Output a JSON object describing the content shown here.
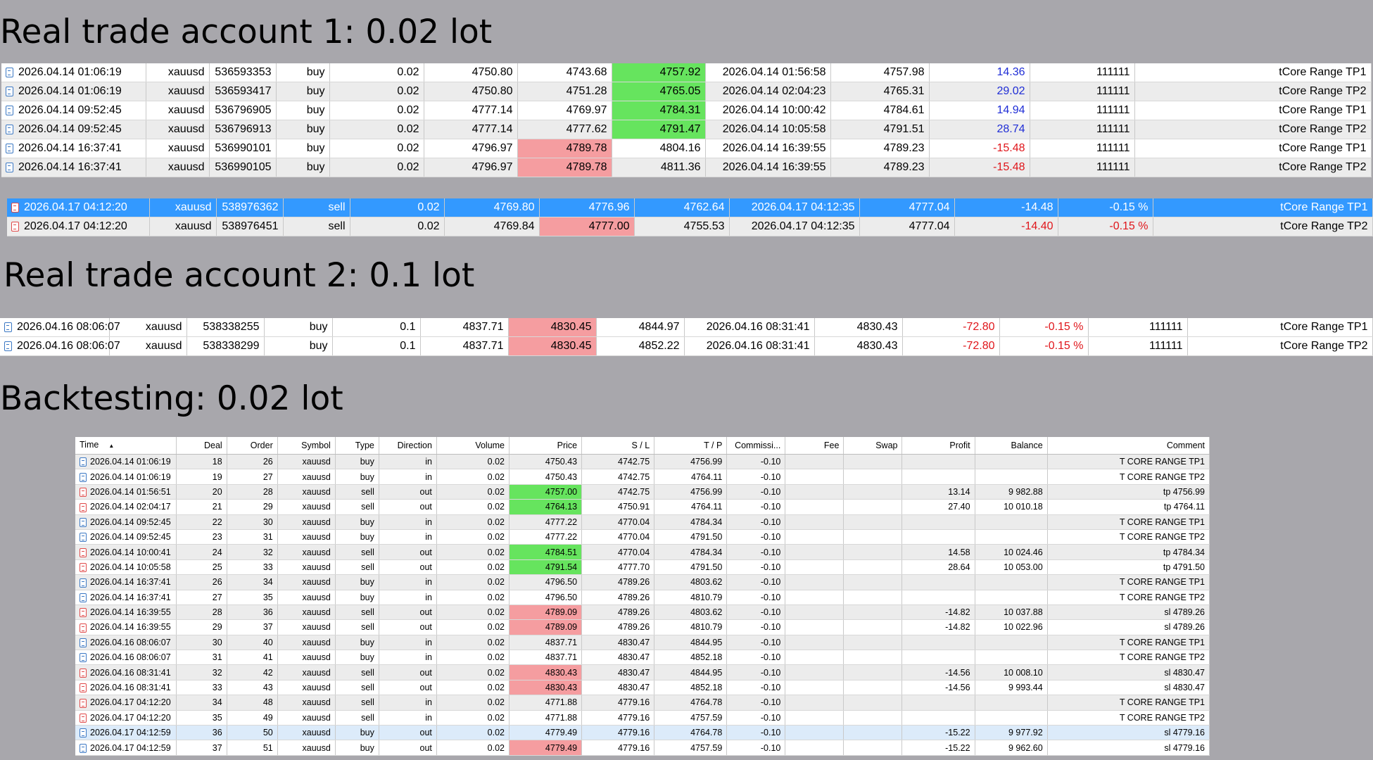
{
  "headings": {
    "account1": "Real trade account 1: 0.02 lot",
    "account2": "Real trade account 2: 0.1 lot",
    "backtest": "Backtesting: 0.02 lot"
  },
  "colors": {
    "background": "#a8a7ac",
    "selected_row": "#3399ff",
    "green_cell": "#66e45e",
    "red_cell": "#f59da0",
    "negative_text": "#e0161b",
    "positive_text": "#1f2dd6"
  },
  "account1": {
    "rows": [
      {
        "time": "2026.04.14 01:06:19",
        "symbol": "xauusd",
        "ticket": "536593353",
        "type": "buy",
        "volume": "0.02",
        "open": "4750.80",
        "sl": "4743.68",
        "tp": "4757.92",
        "close_time": "2026.04.14 01:56:58",
        "close": "4757.98",
        "profit": "14.36",
        "magic": "111111",
        "comment": "tCore Range TP1",
        "hl": "tp",
        "sign": "pos"
      },
      {
        "time": "2026.04.14 01:06:19",
        "symbol": "xauusd",
        "ticket": "536593417",
        "type": "buy",
        "volume": "0.02",
        "open": "4750.80",
        "sl": "4751.28",
        "tp": "4765.05",
        "close_time": "2026.04.14 02:04:23",
        "close": "4765.31",
        "profit": "29.02",
        "magic": "111111",
        "comment": "tCore Range TP2",
        "hl": "tp",
        "sign": "pos"
      },
      {
        "time": "2026.04.14 09:52:45",
        "symbol": "xauusd",
        "ticket": "536796905",
        "type": "buy",
        "volume": "0.02",
        "open": "4777.14",
        "sl": "4769.97",
        "tp": "4784.31",
        "close_time": "2026.04.14 10:00:42",
        "close": "4784.61",
        "profit": "14.94",
        "magic": "111111",
        "comment": "tCore Range TP1",
        "hl": "tp",
        "sign": "pos"
      },
      {
        "time": "2026.04.14 09:52:45",
        "symbol": "xauusd",
        "ticket": "536796913",
        "type": "buy",
        "volume": "0.02",
        "open": "4777.14",
        "sl": "4777.62",
        "tp": "4791.47",
        "close_time": "2026.04.14 10:05:58",
        "close": "4791.51",
        "profit": "28.74",
        "magic": "111111",
        "comment": "tCore Range TP2",
        "hl": "tp",
        "sign": "pos"
      },
      {
        "time": "2026.04.14 16:37:41",
        "symbol": "xauusd",
        "ticket": "536990101",
        "type": "buy",
        "volume": "0.02",
        "open": "4796.97",
        "sl": "4789.78",
        "tp": "4804.16",
        "close_time": "2026.04.14 16:39:55",
        "close": "4789.23",
        "profit": "-15.48",
        "magic": "111111",
        "comment": "tCore Range TP1",
        "hl": "sl",
        "sign": "neg"
      },
      {
        "time": "2026.04.14 16:37:41",
        "symbol": "xauusd",
        "ticket": "536990105",
        "type": "buy",
        "volume": "0.02",
        "open": "4796.97",
        "sl": "4789.78",
        "tp": "4811.36",
        "close_time": "2026.04.14 16:39:55",
        "close": "4789.23",
        "profit": "-15.48",
        "magic": "111111",
        "comment": "tCore Range TP2",
        "hl": "sl",
        "sign": "neg"
      }
    ],
    "rows_b": [
      {
        "time": "2026.04.17 04:12:20",
        "symbol": "xauusd",
        "ticket": "538976362",
        "type": "sell",
        "volume": "0.02",
        "open": "4769.80",
        "sl": "4776.96",
        "tp": "4762.64",
        "close_time": "2026.04.17 04:12:35",
        "close": "4777.04",
        "profit": "-14.48",
        "pct": "-0.15 %",
        "comment": "tCore Range TP1",
        "hl": "none",
        "selected": true
      },
      {
        "time": "2026.04.17 04:12:20",
        "symbol": "xauusd",
        "ticket": "538976451",
        "type": "sell",
        "volume": "0.02",
        "open": "4769.84",
        "sl": "4777.00",
        "tp": "4755.53",
        "close_time": "2026.04.17 04:12:35",
        "close": "4777.04",
        "profit": "-14.40",
        "pct": "-0.15 %",
        "comment": "tCore Range TP2",
        "hl": "sl",
        "selected": false
      }
    ]
  },
  "account2": {
    "rows": [
      {
        "time": "2026.04.16 08:06:07",
        "symbol": "xauusd",
        "ticket": "538338255",
        "type": "buy",
        "volume": "0.1",
        "open": "4837.71",
        "sl": "4830.45",
        "tp": "4844.97",
        "close_time": "2026.04.16 08:31:41",
        "close": "4830.43",
        "profit": "-72.80",
        "pct": "-0.15 %",
        "magic": "111111",
        "comment": "tCore Range TP1"
      },
      {
        "time": "2026.04.16 08:06:07",
        "symbol": "xauusd",
        "ticket": "538338299",
        "type": "buy",
        "volume": "0.1",
        "open": "4837.71",
        "sl": "4830.45",
        "tp": "4852.22",
        "close_time": "2026.04.16 08:31:41",
        "close": "4830.43",
        "profit": "-72.80",
        "pct": "-0.15 %",
        "magic": "111111",
        "comment": "tCore Range TP2"
      }
    ]
  },
  "backtest": {
    "headers": [
      "Time",
      "Deal",
      "Order",
      "Symbol",
      "Type",
      "Direction",
      "Volume",
      "Price",
      "S / L",
      "T / P",
      "Commissi...",
      "Fee",
      "Swap",
      "Profit",
      "Balance",
      "Comment"
    ],
    "rows": [
      {
        "time": "2026.04.14 01:06:19",
        "deal": "18",
        "order": "26",
        "symbol": "xauusd",
        "type": "buy",
        "dir": "in",
        "vol": "0.02",
        "price": "4750.43",
        "sl": "4742.75",
        "tp": "4756.99",
        "comm": "-0.10",
        "profit": "",
        "balance": "",
        "comment": "T CORE RANGE TP1",
        "hl": "none"
      },
      {
        "time": "2026.04.14 01:06:19",
        "deal": "19",
        "order": "27",
        "symbol": "xauusd",
        "type": "buy",
        "dir": "in",
        "vol": "0.02",
        "price": "4750.43",
        "sl": "4742.75",
        "tp": "4764.11",
        "comm": "-0.10",
        "profit": "",
        "balance": "",
        "comment": "T CORE RANGE TP2",
        "hl": "none"
      },
      {
        "time": "2026.04.14 01:56:51",
        "deal": "20",
        "order": "28",
        "symbol": "xauusd",
        "type": "sell",
        "dir": "out",
        "vol": "0.02",
        "price": "4757.00",
        "sl": "4742.75",
        "tp": "4756.99",
        "comm": "-0.10",
        "profit": "13.14",
        "balance": "9 982.88",
        "comment": "tp 4756.99",
        "hl": "green"
      },
      {
        "time": "2026.04.14 02:04:17",
        "deal": "21",
        "order": "29",
        "symbol": "xauusd",
        "type": "sell",
        "dir": "out",
        "vol": "0.02",
        "price": "4764.13",
        "sl": "4750.91",
        "tp": "4764.11",
        "comm": "-0.10",
        "profit": "27.40",
        "balance": "10 010.18",
        "comment": "tp 4764.11",
        "hl": "green"
      },
      {
        "time": "2026.04.14 09:52:45",
        "deal": "22",
        "order": "30",
        "symbol": "xauusd",
        "type": "buy",
        "dir": "in",
        "vol": "0.02",
        "price": "4777.22",
        "sl": "4770.04",
        "tp": "4784.34",
        "comm": "-0.10",
        "profit": "",
        "balance": "",
        "comment": "T CORE RANGE TP1",
        "hl": "none"
      },
      {
        "time": "2026.04.14 09:52:45",
        "deal": "23",
        "order": "31",
        "symbol": "xauusd",
        "type": "buy",
        "dir": "in",
        "vol": "0.02",
        "price": "4777.22",
        "sl": "4770.04",
        "tp": "4791.50",
        "comm": "-0.10",
        "profit": "",
        "balance": "",
        "comment": "T CORE RANGE TP2",
        "hl": "none"
      },
      {
        "time": "2026.04.14 10:00:41",
        "deal": "24",
        "order": "32",
        "symbol": "xauusd",
        "type": "sell",
        "dir": "out",
        "vol": "0.02",
        "price": "4784.51",
        "sl": "4770.04",
        "tp": "4784.34",
        "comm": "-0.10",
        "profit": "14.58",
        "balance": "10 024.46",
        "comment": "tp 4784.34",
        "hl": "green"
      },
      {
        "time": "2026.04.14 10:05:58",
        "deal": "25",
        "order": "33",
        "symbol": "xauusd",
        "type": "sell",
        "dir": "out",
        "vol": "0.02",
        "price": "4791.54",
        "sl": "4777.70",
        "tp": "4791.50",
        "comm": "-0.10",
        "profit": "28.64",
        "balance": "10 053.00",
        "comment": "tp 4791.50",
        "hl": "green"
      },
      {
        "time": "2026.04.14 16:37:41",
        "deal": "26",
        "order": "34",
        "symbol": "xauusd",
        "type": "buy",
        "dir": "in",
        "vol": "0.02",
        "price": "4796.50",
        "sl": "4789.26",
        "tp": "4803.62",
        "comm": "-0.10",
        "profit": "",
        "balance": "",
        "comment": "T CORE RANGE TP1",
        "hl": "none"
      },
      {
        "time": "2026.04.14 16:37:41",
        "deal": "27",
        "order": "35",
        "symbol": "xauusd",
        "type": "buy",
        "dir": "in",
        "vol": "0.02",
        "price": "4796.50",
        "sl": "4789.26",
        "tp": "4810.79",
        "comm": "-0.10",
        "profit": "",
        "balance": "",
        "comment": "T CORE RANGE TP2",
        "hl": "none"
      },
      {
        "time": "2026.04.14 16:39:55",
        "deal": "28",
        "order": "36",
        "symbol": "xauusd",
        "type": "sell",
        "dir": "out",
        "vol": "0.02",
        "price": "4789.09",
        "sl": "4789.26",
        "tp": "4803.62",
        "comm": "-0.10",
        "profit": "-14.82",
        "balance": "10 037.88",
        "comment": "sl 4789.26",
        "hl": "red"
      },
      {
        "time": "2026.04.14 16:39:55",
        "deal": "29",
        "order": "37",
        "symbol": "xauusd",
        "type": "sell",
        "dir": "out",
        "vol": "0.02",
        "price": "4789.09",
        "sl": "4789.26",
        "tp": "4810.79",
        "comm": "-0.10",
        "profit": "-14.82",
        "balance": "10 022.96",
        "comment": "sl 4789.26",
        "hl": "red"
      },
      {
        "time": "2026.04.16 08:06:07",
        "deal": "30",
        "order": "40",
        "symbol": "xauusd",
        "type": "buy",
        "dir": "in",
        "vol": "0.02",
        "price": "4837.71",
        "sl": "4830.47",
        "tp": "4844.95",
        "comm": "-0.10",
        "profit": "",
        "balance": "",
        "comment": "T CORE RANGE TP1",
        "hl": "none"
      },
      {
        "time": "2026.04.16 08:06:07",
        "deal": "31",
        "order": "41",
        "symbol": "xauusd",
        "type": "buy",
        "dir": "in",
        "vol": "0.02",
        "price": "4837.71",
        "sl": "4830.47",
        "tp": "4852.18",
        "comm": "-0.10",
        "profit": "",
        "balance": "",
        "comment": "T CORE RANGE TP2",
        "hl": "none"
      },
      {
        "time": "2026.04.16 08:31:41",
        "deal": "32",
        "order": "42",
        "symbol": "xauusd",
        "type": "sell",
        "dir": "out",
        "vol": "0.02",
        "price": "4830.43",
        "sl": "4830.47",
        "tp": "4844.95",
        "comm": "-0.10",
        "profit": "-14.56",
        "balance": "10 008.10",
        "comment": "sl 4830.47",
        "hl": "red"
      },
      {
        "time": "2026.04.16 08:31:41",
        "deal": "33",
        "order": "43",
        "symbol": "xauusd",
        "type": "sell",
        "dir": "out",
        "vol": "0.02",
        "price": "4830.43",
        "sl": "4830.47",
        "tp": "4852.18",
        "comm": "-0.10",
        "profit": "-14.56",
        "balance": "9 993.44",
        "comment": "sl 4830.47",
        "hl": "red"
      },
      {
        "time": "2026.04.17 04:12:20",
        "deal": "34",
        "order": "48",
        "symbol": "xauusd",
        "type": "sell",
        "dir": "in",
        "vol": "0.02",
        "price": "4771.88",
        "sl": "4779.16",
        "tp": "4764.78",
        "comm": "-0.10",
        "profit": "",
        "balance": "",
        "comment": "T CORE RANGE TP1",
        "hl": "none"
      },
      {
        "time": "2026.04.17 04:12:20",
        "deal": "35",
        "order": "49",
        "symbol": "xauusd",
        "type": "sell",
        "dir": "in",
        "vol": "0.02",
        "price": "4771.88",
        "sl": "4779.16",
        "tp": "4757.59",
        "comm": "-0.10",
        "profit": "",
        "balance": "",
        "comment": "T CORE RANGE TP2",
        "hl": "none"
      },
      {
        "time": "2026.04.17 04:12:59",
        "deal": "36",
        "order": "50",
        "symbol": "xauusd",
        "type": "buy",
        "dir": "out",
        "vol": "0.02",
        "price": "4779.49",
        "sl": "4779.16",
        "tp": "4764.78",
        "comm": "-0.10",
        "profit": "-15.22",
        "balance": "9 977.92",
        "comment": "sl 4779.16",
        "hl": "none",
        "rowhl": true
      },
      {
        "time": "2026.04.17 04:12:59",
        "deal": "37",
        "order": "51",
        "symbol": "xauusd",
        "type": "buy",
        "dir": "out",
        "vol": "0.02",
        "price": "4779.49",
        "sl": "4779.16",
        "tp": "4757.59",
        "comm": "-0.10",
        "profit": "-15.22",
        "balance": "9 962.60",
        "comment": "sl 4779.16",
        "hl": "red"
      }
    ]
  }
}
